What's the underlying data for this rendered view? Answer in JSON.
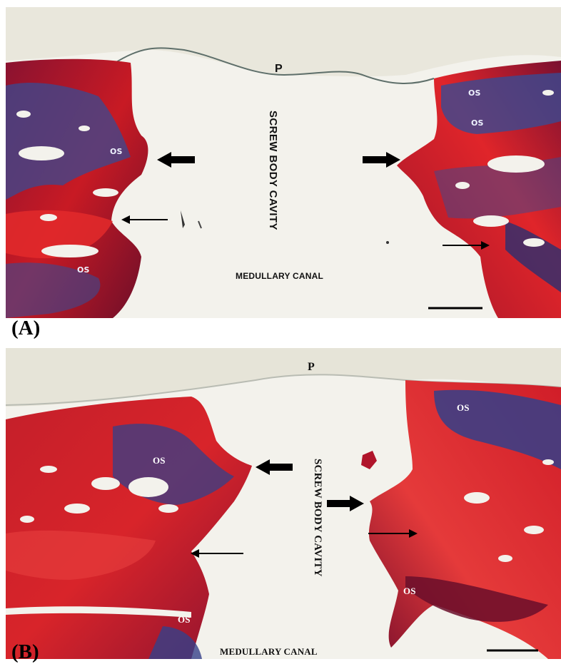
{
  "panels": [
    {
      "id": "A",
      "panel_label": "(A)",
      "labels": {
        "periosteum": "P",
        "cavity": "SCREW BODY CAVITY",
        "canal": "MEDULLARY CANAL",
        "os_left_upper": "OS",
        "os_left_lower": "OS",
        "os_right_upper": "OS",
        "os_right_mid": "OS"
      }
    },
    {
      "id": "B",
      "panel_label": "(B)",
      "labels": {
        "periosteum": "P",
        "cavity": "SCREW BODY CAVITY",
        "canal": "MEDULLARY CANAL",
        "os_left_upper": "OS",
        "os_left_lower": "OS",
        "os_right_upper": "OS",
        "os_right_lower": "OS"
      }
    }
  ],
  "colors": {
    "bone_red": "#d81e22",
    "bone_dark": "#7a0f2c",
    "osteoid_blue": "#34408a",
    "background": "#f3f2ec"
  }
}
